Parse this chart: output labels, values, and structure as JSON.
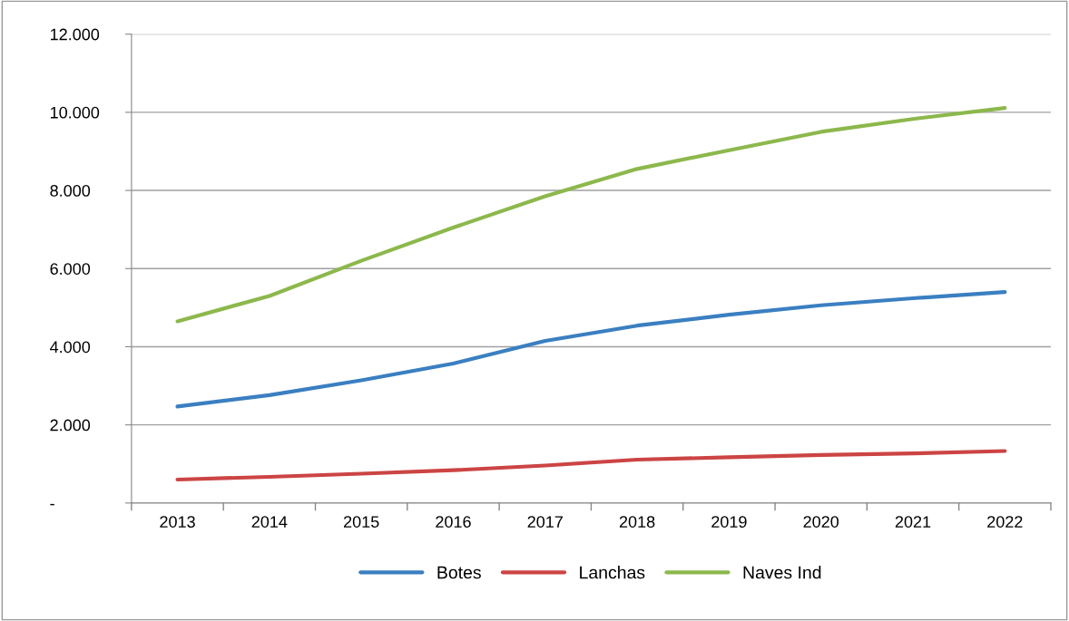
{
  "chart_data": {
    "type": "line",
    "categories": [
      "2013",
      "2014",
      "2015",
      "2016",
      "2017",
      "2018",
      "2019",
      "2020",
      "2021",
      "2022"
    ],
    "series": [
      {
        "name": "Botes",
        "color": "#3a7fc1",
        "values": [
          2470,
          2760,
          3140,
          3570,
          4150,
          4540,
          4820,
          5060,
          5240,
          5400
        ]
      },
      {
        "name": "Lanchas",
        "color": "#cc4444",
        "values": [
          600,
          670,
          750,
          840,
          960,
          1110,
          1170,
          1230,
          1270,
          1330
        ]
      },
      {
        "name": "Naves Ind",
        "color": "#8cb84c",
        "values": [
          4650,
          5300,
          6200,
          7050,
          7850,
          8550,
          9030,
          9500,
          9830,
          10110
        ]
      }
    ],
    "ylim": [
      0,
      12000
    ],
    "yticks": [
      {
        "value": 0,
        "label": "-"
      },
      {
        "value": 2000,
        "label": "2.000"
      },
      {
        "value": 4000,
        "label": "4.000"
      },
      {
        "value": 6000,
        "label": "6.000"
      },
      {
        "value": 8000,
        "label": "8.000"
      },
      {
        "value": 10000,
        "label": "10.000"
      },
      {
        "value": 12000,
        "label": "12.000"
      }
    ],
    "grid": "y",
    "legend": "bottom",
    "marker": "none",
    "line_style": "solid"
  }
}
